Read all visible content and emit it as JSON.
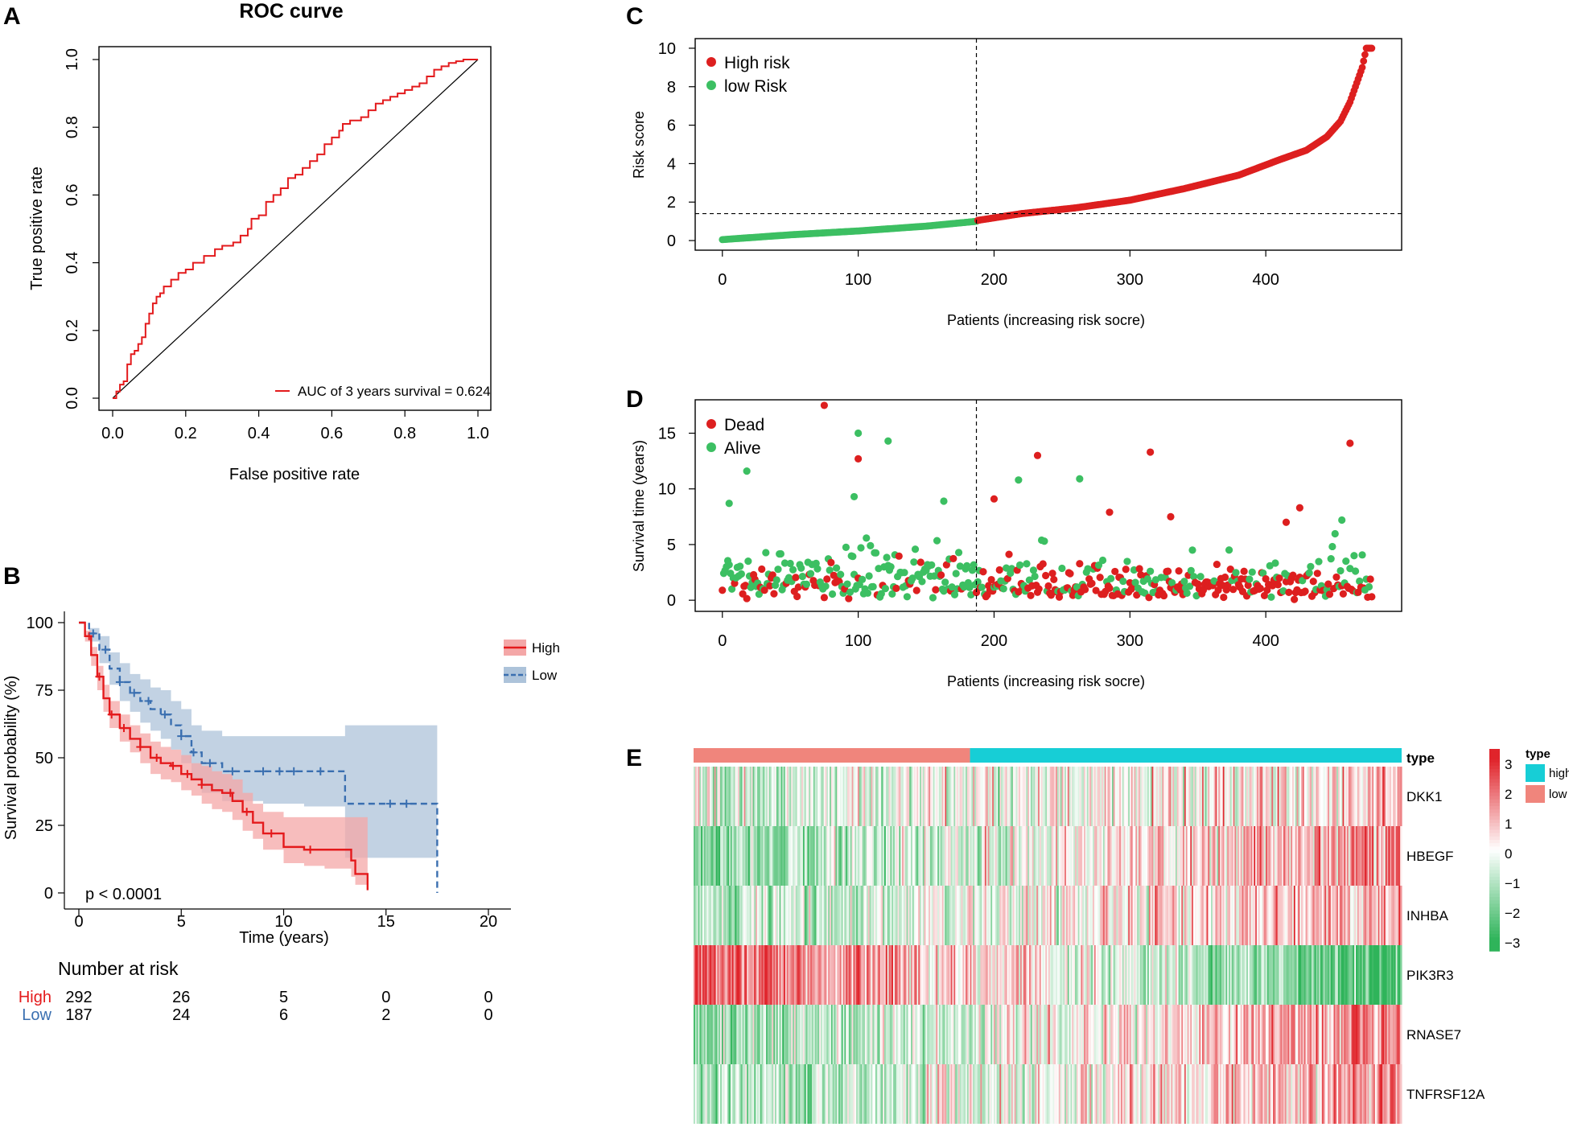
{
  "panel_letters": {
    "a": "A",
    "b": "B",
    "c": "C",
    "d": "D",
    "e": "E"
  },
  "colors": {
    "roc_line": "#e31a1c",
    "high": "#e41a1c",
    "low": "#3a6fb0",
    "high_fill": "#f4a7a7",
    "low_fill": "#adc3da",
    "green": "#3cbf62",
    "red": "#dd1f1f",
    "type_high": "#17ced6",
    "type_low": "#f0857c",
    "heat_high": "#e0242b",
    "heat_mid": "#ffffff",
    "heat_low": "#2fb45a"
  },
  "chart_data": [
    {
      "panel": "A",
      "type": "line",
      "title": "ROC curve",
      "xlabel": "False positive rate",
      "ylabel": "True positive rate",
      "xlim": [
        0,
        1
      ],
      "ylim": [
        0,
        1
      ],
      "xticks": [
        "0.0",
        "0.2",
        "0.4",
        "0.6",
        "0.8",
        "1.0"
      ],
      "yticks": [
        "0.0",
        "0.2",
        "0.4",
        "0.6",
        "0.8",
        "1.0"
      ],
      "legend": "AUC of 3 years survival = 0.624",
      "series": [
        {
          "name": "ROC",
          "x": [
            0,
            0.01,
            0.02,
            0.03,
            0.04,
            0.04,
            0.05,
            0.06,
            0.07,
            0.08,
            0.09,
            0.1,
            0.11,
            0.12,
            0.13,
            0.14,
            0.16,
            0.18,
            0.2,
            0.22,
            0.25,
            0.28,
            0.3,
            0.33,
            0.35,
            0.37,
            0.38,
            0.4,
            0.42,
            0.44,
            0.46,
            0.48,
            0.5,
            0.52,
            0.54,
            0.56,
            0.58,
            0.6,
            0.62,
            0.63,
            0.65,
            0.68,
            0.7,
            0.72,
            0.74,
            0.76,
            0.78,
            0.8,
            0.82,
            0.84,
            0.86,
            0.88,
            0.9,
            0.92,
            0.94,
            0.96,
            0.98,
            1.0
          ],
          "y": [
            0,
            0.02,
            0.04,
            0.05,
            0.07,
            0.1,
            0.13,
            0.14,
            0.16,
            0.18,
            0.22,
            0.25,
            0.28,
            0.3,
            0.31,
            0.33,
            0.35,
            0.37,
            0.38,
            0.4,
            0.42,
            0.44,
            0.45,
            0.46,
            0.48,
            0.5,
            0.53,
            0.54,
            0.58,
            0.6,
            0.62,
            0.65,
            0.66,
            0.68,
            0.7,
            0.72,
            0.75,
            0.77,
            0.79,
            0.81,
            0.82,
            0.83,
            0.85,
            0.87,
            0.88,
            0.89,
            0.9,
            0.91,
            0.92,
            0.93,
            0.95,
            0.97,
            0.98,
            0.99,
            0.995,
            1.0,
            1.0,
            1.0
          ]
        }
      ]
    },
    {
      "panel": "B",
      "type": "line",
      "subtype": "kaplan-meier",
      "xlabel": "Time (years)",
      "ylabel": "Survival probability (%)",
      "xlim": [
        0,
        20
      ],
      "ylim": [
        0,
        100
      ],
      "xticks": [
        "0",
        "5",
        "10",
        "15",
        "20"
      ],
      "yticks": [
        "0",
        "25",
        "50",
        "75",
        "100"
      ],
      "pvalue": "p < 0.0001",
      "legend": [
        "High",
        "Low"
      ],
      "series": [
        {
          "name": "High",
          "x": [
            0,
            0.3,
            0.6,
            0.9,
            1.2,
            1.5,
            2,
            2.5,
            3,
            3.5,
            4,
            4.5,
            5,
            5.5,
            6,
            6.5,
            7,
            7.5,
            8,
            8.5,
            9,
            10,
            11,
            12,
            13,
            13.3,
            13.5,
            14,
            14.1
          ],
          "y": [
            100,
            95,
            88,
            80,
            72,
            66,
            61,
            57,
            54,
            50,
            48,
            47,
            44,
            42,
            40,
            38,
            37,
            34,
            30,
            26,
            22,
            17,
            16,
            16,
            16,
            12,
            7,
            7,
            1
          ],
          "lower": [
            100,
            93,
            84,
            75,
            67,
            61,
            56,
            52,
            48,
            44,
            42,
            41,
            38,
            36,
            33,
            31,
            30,
            27,
            23,
            20,
            16,
            11,
            10,
            9,
            9,
            6,
            3,
            3,
            0
          ],
          "upper": [
            100,
            97,
            91,
            84,
            77,
            71,
            66,
            62,
            59,
            56,
            54,
            53,
            51,
            48,
            47,
            45,
            44,
            42,
            37,
            33,
            30,
            28,
            28,
            28,
            28,
            28,
            28,
            28,
            28
          ]
        },
        {
          "name": "Low",
          "x": [
            0,
            0.5,
            1,
            1.5,
            2,
            2.5,
            3,
            3.5,
            4,
            4.5,
            5,
            5.5,
            6,
            7,
            8,
            9,
            10,
            11,
            12,
            13,
            13,
            15,
            17,
            17.5,
            17.5
          ],
          "y": [
            100,
            96,
            90,
            83,
            78,
            74,
            71,
            68,
            66,
            62,
            58,
            52,
            48,
            45,
            45,
            45,
            45,
            45,
            45,
            45,
            33,
            33,
            33,
            33,
            0
          ],
          "lower": [
            100,
            93,
            85,
            77,
            71,
            67,
            63,
            60,
            57,
            53,
            48,
            42,
            37,
            34,
            34,
            33,
            33,
            32,
            32,
            32,
            13,
            13,
            13,
            13,
            13
          ],
          "upper": [
            100,
            98,
            95,
            89,
            85,
            81,
            79,
            76,
            75,
            71,
            68,
            62,
            60,
            58,
            58,
            58,
            58,
            58,
            58,
            62,
            62,
            62,
            62,
            62,
            62
          ]
        }
      ],
      "risk_table": {
        "title": "Number at risk",
        "times": [
          0,
          5,
          10,
          15,
          20
        ],
        "rows": [
          {
            "label": "High",
            "values": [
              "292",
              "26",
              "5",
              "0",
              "0"
            ]
          },
          {
            "label": "Low",
            "values": [
              "187",
              "24",
              "6",
              "2",
              "0"
            ]
          }
        ]
      }
    },
    {
      "panel": "C",
      "type": "scatter",
      "xlabel": "Patients (increasing risk socre)",
      "ylabel": "Risk score",
      "xlim": [
        -20,
        500
      ],
      "ylim": [
        -0.5,
        10.5
      ],
      "xticks": [
        0,
        100,
        200,
        300,
        400
      ],
      "yticks": [
        0,
        2,
        4,
        6,
        8,
        10
      ],
      "n_patients": 479,
      "cutoff_index": 187,
      "cutoff_score": 1.4,
      "legend": [
        "High risk",
        "low Risk"
      ],
      "curve_anchor_x": [
        0,
        50,
        100,
        150,
        187,
        188,
        220,
        260,
        300,
        340,
        380,
        410,
        430,
        445,
        455,
        462,
        467,
        471,
        474,
        479
      ],
      "curve_anchor_y": [
        0.05,
        0.3,
        0.5,
        0.75,
        1.0,
        1.05,
        1.4,
        1.7,
        2.1,
        2.7,
        3.4,
        4.2,
        4.7,
        5.4,
        6.2,
        7.2,
        8.2,
        9.0,
        10.0,
        10.0
      ]
    },
    {
      "panel": "D",
      "type": "scatter",
      "xlabel": "Patients (increasing risk socre)",
      "ylabel": "Survival time (years)",
      "xlim": [
        -20,
        500
      ],
      "ylim": [
        -1,
        18
      ],
      "xticks": [
        0,
        100,
        200,
        300,
        400
      ],
      "yticks": [
        0,
        5,
        10,
        15
      ],
      "cutoff_index": 187,
      "legend": [
        "Dead",
        "Alive"
      ],
      "highlight_points": [
        {
          "x": 75,
          "y": 17.5,
          "status": "Dead"
        },
        {
          "x": 100,
          "y": 15.0,
          "status": "Alive"
        },
        {
          "x": 122,
          "y": 14.3,
          "status": "Alive"
        },
        {
          "x": 100,
          "y": 12.7,
          "status": "Dead"
        },
        {
          "x": 18,
          "y": 11.6,
          "status": "Alive"
        },
        {
          "x": 232,
          "y": 13.0,
          "status": "Dead"
        },
        {
          "x": 315,
          "y": 13.3,
          "status": "Dead"
        },
        {
          "x": 462,
          "y": 14.1,
          "status": "Dead"
        },
        {
          "x": 263,
          "y": 10.9,
          "status": "Alive"
        },
        {
          "x": 218,
          "y": 10.8,
          "status": "Alive"
        },
        {
          "x": 200,
          "y": 9.1,
          "status": "Dead"
        },
        {
          "x": 97,
          "y": 9.3,
          "status": "Alive"
        },
        {
          "x": 163,
          "y": 8.9,
          "status": "Alive"
        },
        {
          "x": 5,
          "y": 8.7,
          "status": "Alive"
        },
        {
          "x": 425,
          "y": 8.3,
          "status": "Dead"
        },
        {
          "x": 285,
          "y": 7.9,
          "status": "Dead"
        },
        {
          "x": 330,
          "y": 7.5,
          "status": "Dead"
        },
        {
          "x": 415,
          "y": 7.0,
          "status": "Dead"
        },
        {
          "x": 456,
          "y": 7.2,
          "status": "Alive"
        }
      ]
    },
    {
      "panel": "E",
      "type": "heatmap",
      "genes": [
        "DKK1",
        "HBEGF",
        "INHBA",
        "PIK3R3",
        "RNASE7",
        "TNFRSF12A"
      ],
      "annotation_label": "type",
      "legend_title": "type",
      "legend_items": [
        "high",
        "low"
      ],
      "colorbar_ticks": [
        "3",
        "2",
        "1",
        "0",
        "−1",
        "−2",
        "−3"
      ],
      "n_low": 187,
      "n_high": 292,
      "trend": [
        0.5,
        1.1,
        0.8,
        -1.6,
        1.0,
        0.9
      ],
      "color_range": [
        -3,
        3
      ]
    }
  ]
}
